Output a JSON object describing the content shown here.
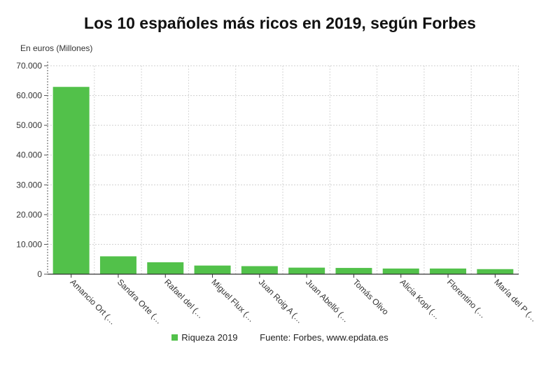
{
  "chart_data": {
    "type": "bar",
    "title": "Los 10 españoles más ricos en 2019, según Forbes",
    "ylabel": "En euros (Millones)",
    "xlabel": "",
    "ylim": [
      0,
      70000
    ],
    "yticks": [
      0,
      10000,
      20000,
      30000,
      40000,
      50000,
      60000,
      70000
    ],
    "ytick_labels": [
      "0",
      "10.000",
      "20.000",
      "30.000",
      "40.000",
      "50.000",
      "60.000",
      "70.000"
    ],
    "grid": true,
    "legend_position": "bottom",
    "categories": [
      "Amancio Ort (…",
      "Sandra Orte (…",
      "Rafael del (…",
      "Miguel Flux (…",
      "Juan Roig A (…",
      "Juan Abelló (…",
      "Tomás Olivo",
      "Alicia Kopl (…",
      "Florentino (…",
      "María del P (…"
    ],
    "series": [
      {
        "name": "Riqueza 2019",
        "color": "#52c14a",
        "values": [
          62900,
          6000,
          4000,
          2900,
          2700,
          2200,
          2100,
          1900,
          1900,
          1700
        ]
      }
    ],
    "source": "Fuente: Forbes, www.epdata.es"
  }
}
